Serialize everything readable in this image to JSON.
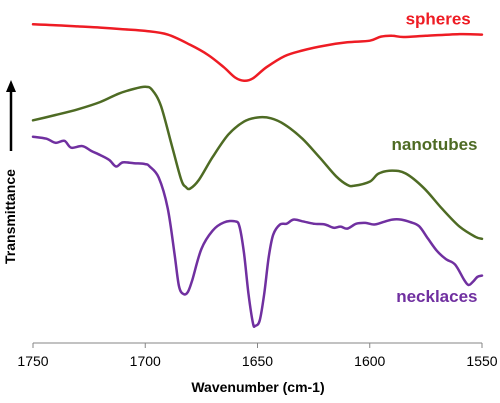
{
  "chart_data": {
    "type": "line",
    "title": "",
    "xlabel": "Wavenumber (cm-1)",
    "ylabel": "Transmittance",
    "x_reversed": true,
    "xlim": [
      1750,
      1550
    ],
    "xticks": [
      1750,
      1700,
      1650,
      1600,
      1550
    ],
    "yticks_shown": false,
    "grid": false,
    "legend": "inline labels next to curves",
    "series": [
      {
        "name": "spheres",
        "color": "#ee1c24",
        "label_anchor": [
          1555,
          0.96
        ],
        "points": [
          [
            1750,
            0.96
          ],
          [
            1740,
            0.958
          ],
          [
            1730,
            0.955
          ],
          [
            1720,
            0.952
          ],
          [
            1710,
            0.948
          ],
          [
            1700,
            0.944
          ],
          [
            1690,
            0.935
          ],
          [
            1680,
            0.91
          ],
          [
            1672,
            0.885
          ],
          [
            1665,
            0.855
          ],
          [
            1660,
            0.83
          ],
          [
            1656,
            0.822
          ],
          [
            1652,
            0.828
          ],
          [
            1646,
            0.855
          ],
          [
            1638,
            0.882
          ],
          [
            1630,
            0.896
          ],
          [
            1620,
            0.908
          ],
          [
            1610,
            0.916
          ],
          [
            1600,
            0.92
          ],
          [
            1595,
            0.93
          ],
          [
            1590,
            0.932
          ],
          [
            1585,
            0.929
          ],
          [
            1575,
            0.932
          ],
          [
            1560,
            0.936
          ],
          [
            1550,
            0.935
          ]
        ]
      },
      {
        "name": "nanotubes",
        "color": "#4e6b24",
        "label_anchor": [
          1552,
          0.652
        ],
        "points": [
          [
            1750,
            0.725
          ],
          [
            1740,
            0.738
          ],
          [
            1730,
            0.752
          ],
          [
            1720,
            0.77
          ],
          [
            1712,
            0.79
          ],
          [
            1705,
            0.802
          ],
          [
            1700,
            0.807
          ],
          [
            1697,
            0.8
          ],
          [
            1693,
            0.76
          ],
          [
            1688,
            0.66
          ],
          [
            1684,
            0.58
          ],
          [
            1682,
            0.562
          ],
          [
            1680,
            0.558
          ],
          [
            1676,
            0.58
          ],
          [
            1670,
            0.635
          ],
          [
            1663,
            0.69
          ],
          [
            1656,
            0.722
          ],
          [
            1650,
            0.732
          ],
          [
            1644,
            0.73
          ],
          [
            1638,
            0.715
          ],
          [
            1630,
            0.68
          ],
          [
            1622,
            0.632
          ],
          [
            1615,
            0.588
          ],
          [
            1610,
            0.567
          ],
          [
            1607,
            0.565
          ],
          [
            1600,
            0.575
          ],
          [
            1596,
            0.595
          ],
          [
            1590,
            0.602
          ],
          [
            1584,
            0.595
          ],
          [
            1576,
            0.56
          ],
          [
            1568,
            0.51
          ],
          [
            1560,
            0.465
          ],
          [
            1553,
            0.44
          ],
          [
            1550,
            0.435
          ]
        ]
      },
      {
        "name": "necklaces",
        "color": "#7030a0",
        "label_anchor": [
          1552,
          0.28
        ],
        "points": [
          [
            1750,
            0.685
          ],
          [
            1744,
            0.68
          ],
          [
            1740,
            0.67
          ],
          [
            1736,
            0.675
          ],
          [
            1733,
            0.658
          ],
          [
            1728,
            0.662
          ],
          [
            1724,
            0.65
          ],
          [
            1720,
            0.64
          ],
          [
            1716,
            0.628
          ],
          [
            1713,
            0.612
          ],
          [
            1710,
            0.622
          ],
          [
            1705,
            0.62
          ],
          [
            1700,
            0.618
          ],
          [
            1698,
            0.612
          ],
          [
            1694,
            0.585
          ],
          [
            1690,
            0.51
          ],
          [
            1687,
            0.4
          ],
          [
            1685,
            0.32
          ],
          [
            1683,
            0.3
          ],
          [
            1681,
            0.305
          ],
          [
            1679,
            0.335
          ],
          [
            1675,
            0.41
          ],
          [
            1670,
            0.455
          ],
          [
            1665,
            0.475
          ],
          [
            1660,
            0.478
          ],
          [
            1658,
            0.465
          ],
          [
            1656,
            0.4
          ],
          [
            1654,
            0.3
          ],
          [
            1652,
            0.228
          ],
          [
            1651,
            0.222
          ],
          [
            1649,
            0.235
          ],
          [
            1647,
            0.3
          ],
          [
            1645,
            0.39
          ],
          [
            1643,
            0.445
          ],
          [
            1640,
            0.47
          ],
          [
            1637,
            0.472
          ],
          [
            1634,
            0.482
          ],
          [
            1630,
            0.478
          ],
          [
            1625,
            0.472
          ],
          [
            1620,
            0.47
          ],
          [
            1616,
            0.462
          ],
          [
            1613,
            0.465
          ],
          [
            1610,
            0.46
          ],
          [
            1606,
            0.472
          ],
          [
            1602,
            0.474
          ],
          [
            1598,
            0.47
          ],
          [
            1594,
            0.476
          ],
          [
            1590,
            0.482
          ],
          [
            1586,
            0.482
          ],
          [
            1582,
            0.476
          ],
          [
            1578,
            0.466
          ],
          [
            1574,
            0.435
          ],
          [
            1570,
            0.405
          ],
          [
            1566,
            0.385
          ],
          [
            1562,
            0.372
          ],
          [
            1558,
            0.335
          ],
          [
            1556,
            0.322
          ],
          [
            1554,
            0.33
          ],
          [
            1552,
            0.342
          ],
          [
            1550,
            0.345
          ]
        ]
      }
    ]
  }
}
